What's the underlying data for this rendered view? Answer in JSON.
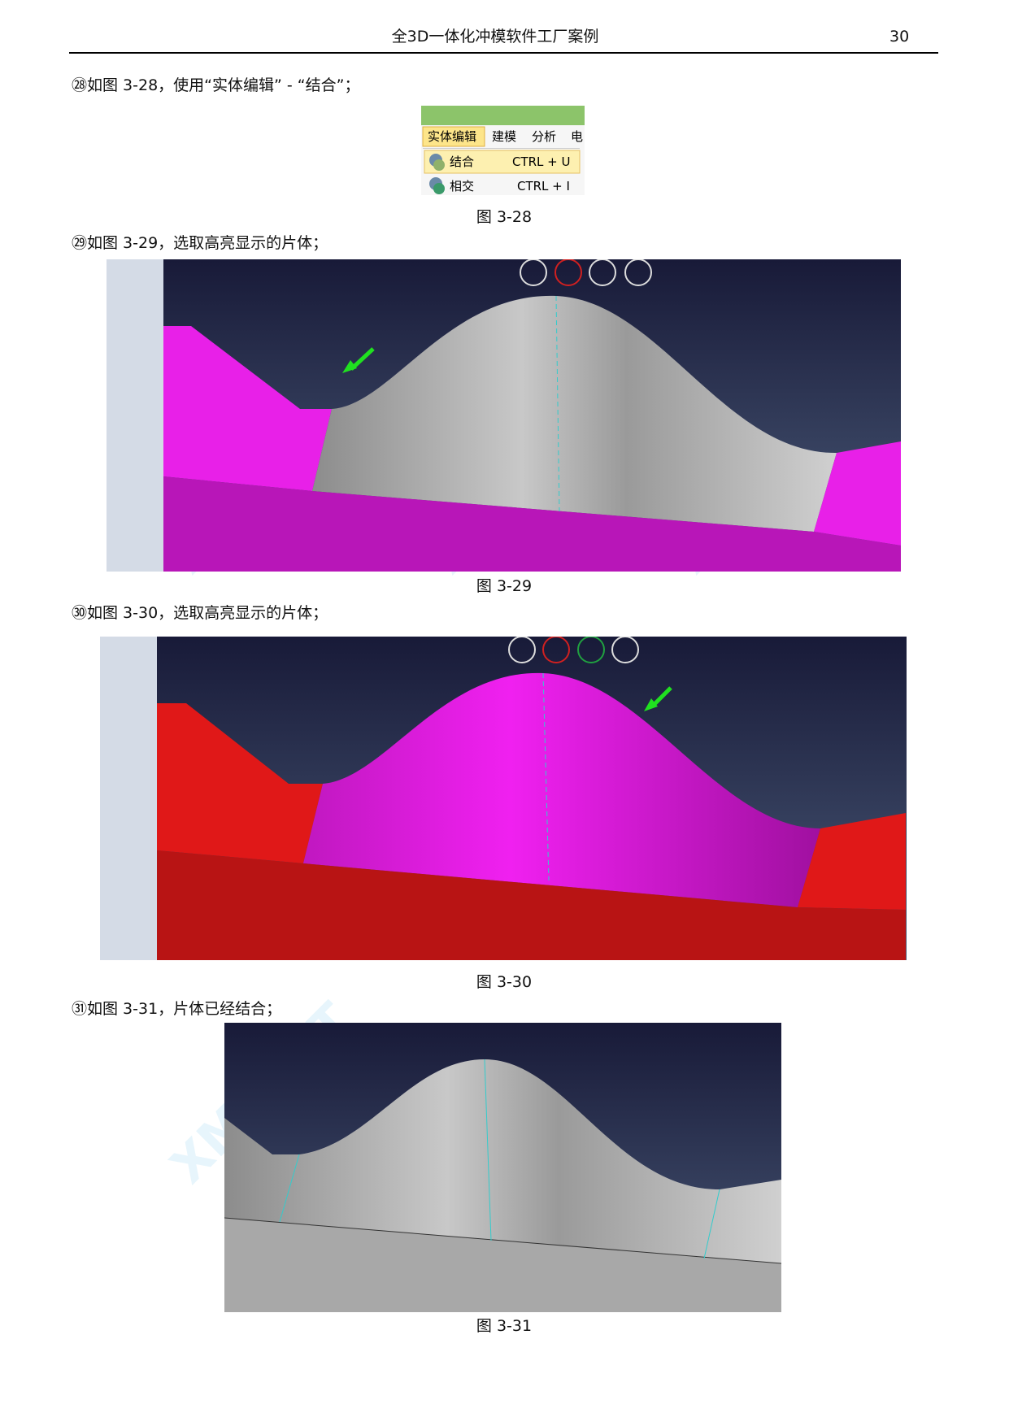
{
  "header": {
    "title": "全3D一体化冲模软件工厂案例",
    "page_number": "30"
  },
  "watermark": "XMSOFT",
  "steps": [
    {
      "text": "㉘如图 3-28，使用“实体编辑” - “结合”；",
      "caption": "图 3-28"
    },
    {
      "text": "㉙如图 3-29，选取高亮显示的片体；",
      "caption": "图 3-29"
    },
    {
      "text": "㉚如图 3-30，选取高亮显示的片体；",
      "caption": "图 3-30"
    },
    {
      "text": "㉛如图 3-31，片体已经结合；",
      "caption": "图 3-31"
    }
  ],
  "menu": {
    "tabs": [
      "实体编辑",
      "建模",
      "分析",
      "电"
    ],
    "items": [
      {
        "label": "结合",
        "shortcut": "CTRL + U"
      },
      {
        "label": "相交",
        "shortcut": "CTRL + I"
      }
    ]
  }
}
